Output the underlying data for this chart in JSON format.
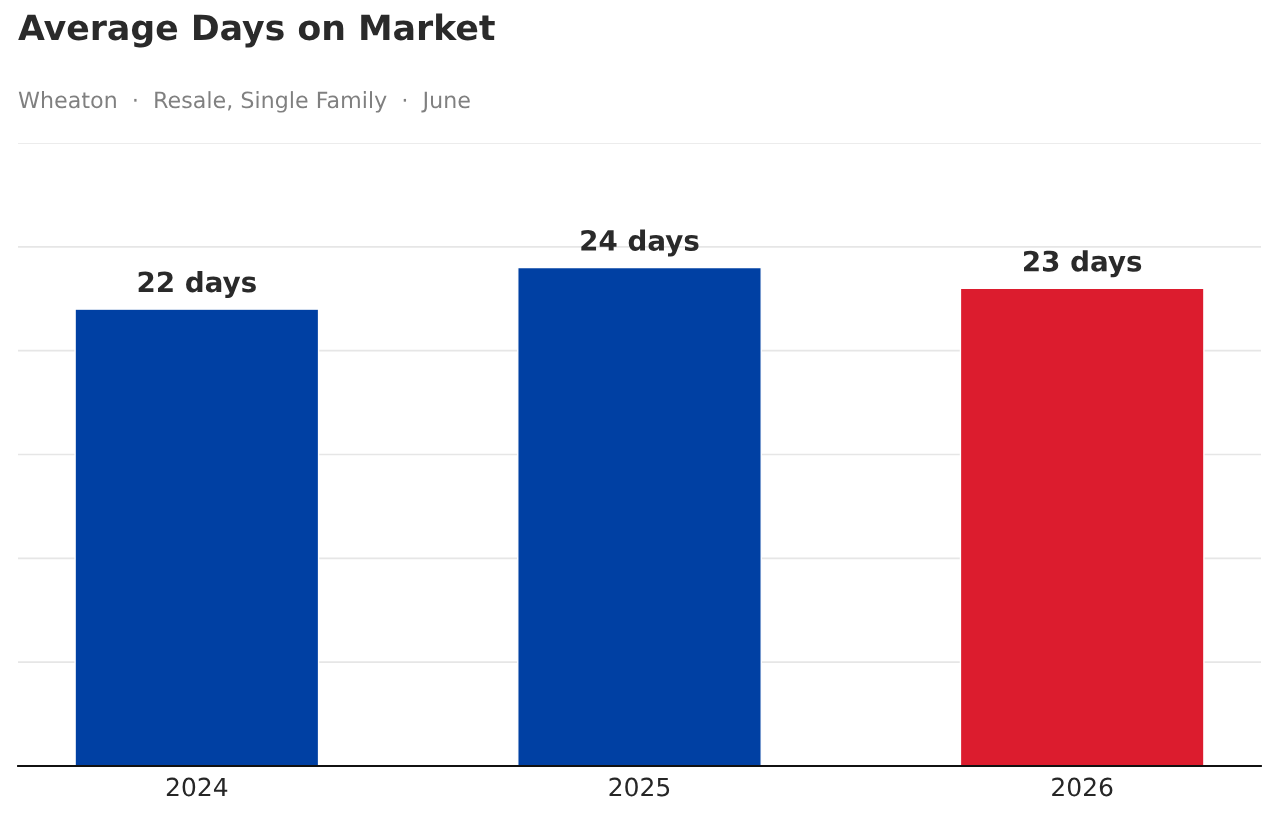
{
  "chart_data": {
    "type": "bar",
    "title": "Average Days on Market",
    "subtitle": "Wheaton  ·  Resale, Single Family  ·  June",
    "categories": [
      "2024",
      "2025",
      "2026"
    ],
    "values": [
      22,
      24,
      23
    ],
    "colors": [
      "#0040a3",
      "#0040a3",
      "#dc1c2e"
    ],
    "value_labels": [
      "22 days",
      "24 days",
      "23 days"
    ],
    "ylim": [
      0,
      30
    ],
    "yticks": [
      {
        "value": 0,
        "label": null
      },
      {
        "value": 5,
        "label": null
      },
      {
        "value": 10,
        "label": null
      },
      {
        "value": 15,
        "label": null
      },
      {
        "value": 20,
        "label": null
      },
      {
        "value": 25,
        "label": null
      },
      {
        "value": 30,
        "label": null
      }
    ],
    "tick_labels": "x",
    "grid": "y",
    "legend": false
  }
}
